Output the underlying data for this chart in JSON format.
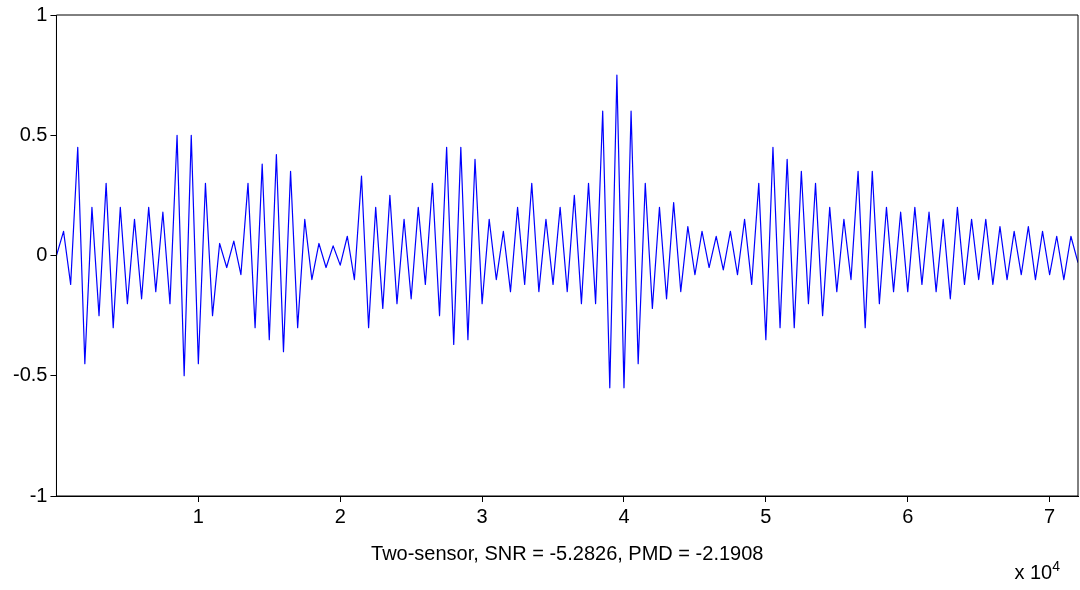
{
  "chart_data": {
    "type": "line",
    "xlabel": "Two-sensor, SNR = -5.2826, PMD = -2.1908",
    "annotations": [
      "x 10$^{4}$"
    ],
    "x": [
      0,
      0.05,
      0.1,
      0.15,
      0.2,
      0.25,
      0.3,
      0.35,
      0.4,
      0.45,
      0.5,
      0.55,
      0.6,
      0.65,
      0.7,
      0.75,
      0.8,
      0.85,
      0.9,
      0.95,
      1,
      1.05,
      1.1,
      1.15,
      1.2,
      1.25,
      1.3,
      1.35,
      1.4,
      1.45,
      1.5,
      1.55,
      1.6,
      1.65,
      1.7,
      1.75,
      1.8,
      1.85,
      1.9,
      1.95,
      2,
      2.05,
      2.1,
      2.15,
      2.2,
      2.25,
      2.3,
      2.35,
      2.4,
      2.45,
      2.5,
      2.55,
      2.6,
      2.65,
      2.7,
      2.75,
      2.8,
      2.85,
      2.9,
      2.95,
      3,
      3.05,
      3.1,
      3.15,
      3.2,
      3.25,
      3.3,
      3.35,
      3.4,
      3.45,
      3.5,
      3.55,
      3.6,
      3.65,
      3.7,
      3.75,
      3.8,
      3.85,
      3.9,
      3.95,
      4,
      4.05,
      4.1,
      4.15,
      4.2,
      4.25,
      4.3,
      4.35,
      4.4,
      4.45,
      4.5,
      4.55,
      4.6,
      4.65,
      4.7,
      4.75,
      4.8,
      4.85,
      4.9,
      4.95,
      5,
      5.05,
      5.1,
      5.15,
      5.2,
      5.25,
      5.3,
      5.35,
      5.4,
      5.45,
      5.5,
      5.55,
      5.6,
      5.65,
      5.7,
      5.75,
      5.8,
      5.85,
      5.9,
      5.95,
      6,
      6.05,
      6.1,
      6.15,
      6.2,
      6.25,
      6.3,
      6.35,
      6.4,
      6.45,
      6.5,
      6.55,
      6.6,
      6.65,
      6.7,
      6.75,
      6.8,
      6.85,
      6.9,
      6.95,
      7,
      7.05,
      7.1,
      7.15,
      7.2
    ],
    "series": [
      {
        "color": "#0000ff",
        "values": [
          0,
          0.1,
          -0.12,
          0.45,
          -0.45,
          0.2,
          -0.25,
          0.3,
          -0.3,
          0.2,
          -0.2,
          0.15,
          -0.18,
          0.2,
          -0.15,
          0.18,
          -0.2,
          0.5,
          -0.5,
          0.5,
          -0.45,
          0.3,
          -0.25,
          0.05,
          -0.05,
          0.06,
          -0.08,
          0.3,
          -0.3,
          0.38,
          -0.35,
          0.42,
          -0.4,
          0.35,
          -0.3,
          0.15,
          -0.1,
          0.05,
          -0.05,
          0.04,
          -0.04,
          0.08,
          -0.1,
          0.33,
          -0.3,
          0.2,
          -0.22,
          0.25,
          -0.2,
          0.15,
          -0.18,
          0.2,
          -0.12,
          0.3,
          -0.25,
          0.45,
          -0.37,
          0.45,
          -0.35,
          0.4,
          -0.2,
          0.15,
          -0.1,
          0.1,
          -0.15,
          0.2,
          -0.12,
          0.3,
          -0.15,
          0.15,
          -0.12,
          0.2,
          -0.15,
          0.25,
          -0.2,
          0.3,
          -0.2,
          0.6,
          -0.55,
          0.75,
          -0.55,
          0.6,
          -0.45,
          0.3,
          -0.22,
          0.2,
          -0.18,
          0.22,
          -0.15,
          0.12,
          -0.08,
          0.1,
          -0.05,
          0.08,
          -0.06,
          0.1,
          -0.08,
          0.15,
          -0.12,
          0.3,
          -0.35,
          0.45,
          -0.3,
          0.4,
          -0.3,
          0.35,
          -0.2,
          0.3,
          -0.25,
          0.2,
          -0.15,
          0.15,
          -0.1,
          0.35,
          -0.3,
          0.35,
          -0.2,
          0.2,
          -0.15,
          0.18,
          -0.15,
          0.2,
          -0.12,
          0.18,
          -0.15,
          0.15,
          -0.18,
          0.2,
          -0.12,
          0.15,
          -0.1,
          0.15,
          -0.12,
          0.12,
          -0.1,
          0.1,
          -0.08,
          0.12,
          -0.1,
          0.1,
          -0.08,
          0.08,
          -0.1,
          0.08,
          -0.03
        ]
      }
    ],
    "xlim": [
      0,
      7.2
    ],
    "xticks": [
      1,
      2,
      3,
      4,
      5,
      6,
      7
    ],
    "ylim": [
      -1,
      1
    ],
    "yticks": [
      -1,
      -0.5,
      0,
      0.5,
      1
    ],
    "grid": false,
    "legend": false,
    "marker": "none",
    "line_style": "solid"
  }
}
